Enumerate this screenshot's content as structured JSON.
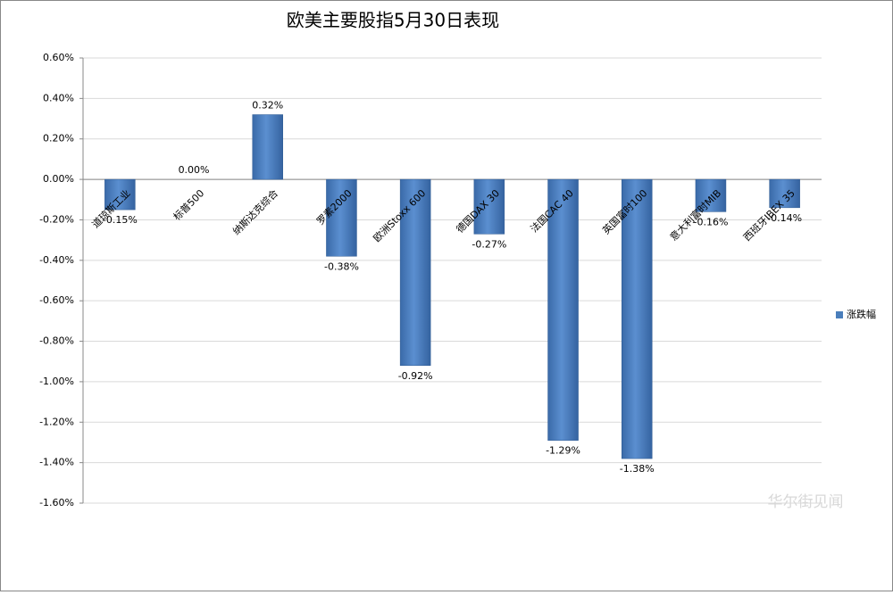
{
  "chart_data": {
    "type": "bar",
    "title": "欧美主要股指5月30日表现",
    "categories": [
      "道琼斯工业",
      "标普500",
      "纳斯达克综合",
      "罗素2000",
      "欧洲Stoxx 600",
      "德国DAX 30",
      "法国CAC 40",
      "英国富时100",
      "意大利富时MIB",
      "西班牙IBEX 35"
    ],
    "series": [
      {
        "name": "涨跌幅",
        "color": "#4a7ebb",
        "values": [
          -0.15,
          0,
          0.32,
          -0.38,
          -0.92,
          -0.27,
          -1.29,
          -1.38,
          -0.16,
          -0.14
        ],
        "value_labels": [
          "-0.15%",
          "0.00%",
          "0.32%",
          "-0.38%",
          "-0.92%",
          "-0.27%",
          "-1.29%",
          "-1.38%",
          "-0.16%",
          "-0.14%"
        ]
      }
    ],
    "ylim": [
      -1.6,
      0.6
    ],
    "yticks": [
      {
        "value": 0.6,
        "label": "0.60%"
      },
      {
        "value": 0.4,
        "label": "0.40%"
      },
      {
        "value": 0.2,
        "label": "0.20%"
      },
      {
        "value": 0,
        "label": "0.00%"
      },
      {
        "value": -0.2,
        "label": "-0.20%"
      },
      {
        "value": -0.4,
        "label": "-0.40%"
      },
      {
        "value": -0.6,
        "label": "-0.60%"
      },
      {
        "value": -0.8,
        "label": "-0.80%"
      },
      {
        "value": -1.0,
        "label": "-1.00%"
      },
      {
        "value": -1.2,
        "label": "-1.20%"
      },
      {
        "value": -1.4,
        "label": "-1.40%"
      },
      {
        "value": -1.6,
        "label": "-1.60%"
      }
    ],
    "grid": true,
    "legend": "right",
    "watermark": "华尔街见闻"
  }
}
